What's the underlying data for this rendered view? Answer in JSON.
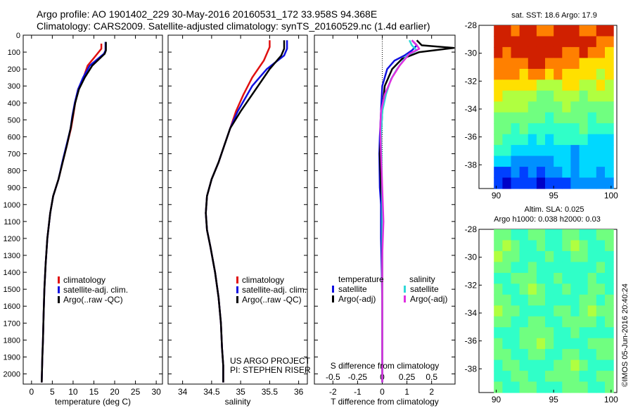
{
  "header": {
    "line1": "Argo profile: AO 1901402_229 30-May-2016 20160531_172 33.958S 94.368E",
    "line2": "Climatology: CARS2009. Satellite-adjusted climatology: synTS_20160529.nc (1.4d earlier)"
  },
  "colors": {
    "climatology": "#e01010",
    "satellite": "#1010e0",
    "argo": "#000000",
    "satellite_s": "#30d8d8",
    "argo_s": "#e030e0"
  },
  "credits": {
    "project": "US ARGO PROJECT",
    "pi": "PI: STEPHEN RISER"
  },
  "watermark": "©IMOS 05-Jun-2016 20:40:24",
  "chart_data": [
    {
      "type": "line",
      "xlabel": "temperature (deg C)",
      "ylabel": "",
      "xlim": [
        -2,
        31.5
      ],
      "ylim": [
        2060,
        0
      ],
      "yinvert": true,
      "xticks": [
        0,
        5,
        10,
        15,
        20,
        25,
        30
      ],
      "yticks": [
        0,
        100,
        200,
        300,
        400,
        500,
        600,
        700,
        800,
        900,
        1000,
        1100,
        1200,
        1300,
        1400,
        1500,
        1600,
        1700,
        1800,
        1900,
        2000
      ],
      "legend": "bottom-right",
      "series": [
        {
          "name": "climatology",
          "color_key": "climatology",
          "x": [
            16.8,
            16.8,
            15.5,
            13.5,
            12.5,
            11.2,
            10.5,
            10.0,
            9.5,
            8.5,
            7.5,
            6.5,
            5.2,
            4.5,
            3.8,
            3.4,
            3.1,
            2.9,
            2.75,
            2.6,
            2.5,
            2.45
          ],
          "y": [
            50,
            80,
            120,
            180,
            250,
            320,
            400,
            480,
            550,
            650,
            750,
            850,
            950,
            1050,
            1200,
            1350,
            1500,
            1650,
            1800,
            1900,
            2000,
            2050
          ]
        },
        {
          "name": "satellite-adj. clim.",
          "color_key": "satellite",
          "x": [
            17.8,
            17.8,
            17.4,
            14.0,
            12.4,
            11.2,
            10.4,
            9.8,
            9.4,
            8.4,
            7.4,
            6.5,
            5.2,
            4.5,
            3.8,
            3.4,
            3.1,
            2.9,
            2.75,
            2.6,
            2.5,
            2.45
          ],
          "y": [
            40,
            90,
            110,
            180,
            250,
            320,
            400,
            480,
            550,
            650,
            750,
            850,
            950,
            1050,
            1200,
            1350,
            1500,
            1650,
            1800,
            1900,
            2000,
            2050
          ]
        },
        {
          "name": "Argo(..raw -QC)",
          "color_key": "argo",
          "x": [
            17.9,
            17.9,
            17.6,
            14.6,
            12.8,
            11.4,
            10.5,
            9.9,
            9.4,
            8.5,
            7.5,
            6.5,
            5.2,
            4.5,
            3.8,
            3.4,
            3.1,
            2.9,
            2.75,
            2.6,
            2.5,
            2.45
          ],
          "y": [
            40,
            90,
            110,
            180,
            250,
            320,
            400,
            480,
            550,
            650,
            750,
            850,
            950,
            1050,
            1200,
            1350,
            1500,
            1650,
            1800,
            1900,
            2000,
            2050
          ]
        }
      ]
    },
    {
      "type": "line",
      "xlabel": "salinity",
      "ylabel": "",
      "xlim": [
        33.75,
        36.15
      ],
      "ylim": [
        2060,
        0
      ],
      "yinvert": true,
      "xticks": [
        34,
        34.5,
        35,
        35.5,
        36
      ],
      "legend": "bottom-right",
      "series": [
        {
          "name": "climatology",
          "color_key": "climatology",
          "x": [
            35.5,
            35.5,
            35.4,
            35.2,
            35.05,
            34.92,
            34.82,
            34.72,
            34.62,
            34.5,
            34.42,
            34.4,
            34.42,
            34.48,
            34.56,
            34.62,
            34.66,
            34.68,
            34.7,
            34.7
          ],
          "y": [
            30,
            70,
            150,
            250,
            350,
            450,
            550,
            650,
            750,
            850,
            950,
            1050,
            1150,
            1250,
            1400,
            1550,
            1700,
            1850,
            1950,
            2050
          ]
        },
        {
          "name": "satellite-adj. clim.",
          "color_key": "satellite",
          "x": [
            35.8,
            35.8,
            35.75,
            35.45,
            35.2,
            34.95,
            34.82,
            34.72,
            34.62,
            34.5,
            34.42,
            34.4,
            34.42,
            34.48,
            34.56,
            34.62,
            34.66,
            34.68,
            34.7,
            34.7
          ],
          "y": [
            30,
            80,
            120,
            200,
            300,
            450,
            550,
            650,
            750,
            850,
            950,
            1050,
            1150,
            1250,
            1400,
            1550,
            1700,
            1850,
            1950,
            2050
          ]
        },
        {
          "name": "Argo(..raw -QC)",
          "color_key": "argo",
          "x": [
            35.75,
            35.75,
            35.7,
            35.5,
            35.3,
            35.0,
            34.82,
            34.72,
            34.62,
            34.5,
            34.42,
            34.4,
            34.42,
            34.48,
            34.56,
            34.62,
            34.66,
            34.68,
            34.7,
            34.7
          ],
          "y": [
            30,
            80,
            120,
            200,
            300,
            450,
            550,
            650,
            750,
            850,
            950,
            1050,
            1150,
            1250,
            1400,
            1550,
            1700,
            1850,
            1950,
            2050
          ]
        }
      ]
    },
    {
      "type": "line",
      "xlabel": "T difference from climatology",
      "xlabel_top": "S difference from climatology",
      "xlim": [
        -2.75,
        2.95
      ],
      "ylim": [
        2060,
        0
      ],
      "yinvert": true,
      "xticks": [
        -2,
        -1,
        0,
        1,
        2
      ],
      "xticks_s": [
        -0.5,
        -0.25,
        0,
        0.25,
        0.5
      ],
      "legend_groups": [
        "temperature",
        "salinity"
      ],
      "series": [
        {
          "name": "satellite",
          "group": "temperature",
          "color_key": "satellite",
          "x": [
            1.2,
            1.4,
            1.2,
            0.9,
            0.5,
            0.2,
            0.0,
            -0.05,
            -0.1,
            -0.12,
            -0.1,
            -0.05,
            -0.05,
            -0.02,
            0.0,
            0.0,
            0.0,
            0.0
          ],
          "y": [
            30,
            60,
            90,
            120,
            150,
            200,
            300,
            450,
            600,
            700,
            900,
            1000,
            1200,
            1400,
            1600,
            1800,
            1950,
            2050
          ]
        },
        {
          "name": "Argo(-adj)",
          "group": "temperature",
          "color_key": "argo",
          "x": [
            1.4,
            1.6,
            2.9,
            1.5,
            0.8,
            0.4,
            0.1,
            0.0,
            -0.05,
            -0.1,
            -0.05,
            0.0,
            0.0,
            0.0,
            0.0,
            0.0,
            0.0
          ],
          "y": [
            30,
            60,
            75,
            100,
            140,
            200,
            300,
            450,
            600,
            700,
            900,
            1000,
            1200,
            1400,
            1600,
            1800,
            2050
          ]
        },
        {
          "name": "satellite",
          "group": "salinity",
          "color_key": "satellite_s",
          "x": [
            1.1,
            1.2,
            1.4,
            1.0,
            0.6,
            0.35,
            0.15,
            0.0,
            -0.05,
            -0.02,
            0.0,
            0.0,
            0.0,
            0.0,
            0.0,
            0.0
          ],
          "y": [
            30,
            60,
            90,
            120,
            200,
            260,
            350,
            450,
            600,
            800,
            1000,
            1200,
            1400,
            1600,
            1800,
            2050
          ]
        },
        {
          "name": "Argo(-adj)",
          "group": "salinity",
          "color_key": "argo_s",
          "x": [
            1.2,
            1.4,
            1.5,
            1.1,
            0.7,
            0.4,
            0.1,
            -0.05,
            -0.08,
            -0.05,
            0.0,
            0.05,
            0.0,
            0.0,
            0.0,
            0.0
          ],
          "y": [
            30,
            60,
            80,
            110,
            180,
            250,
            350,
            450,
            550,
            700,
            900,
            1100,
            1300,
            1500,
            1800,
            2050
          ]
        }
      ]
    },
    {
      "type": "heatmap",
      "title": "sat. SST: 18.6 Argo: 17.9",
      "xlim": [
        88.5,
        100.5
      ],
      "ylim": [
        -39.7,
        -28
      ],
      "xticks": [
        90,
        95,
        100
      ],
      "yticks": [
        -28,
        -30,
        -32,
        -34,
        -36,
        -38
      ],
      "colormap": "jet",
      "grid_rows": [
        [
          10,
          10,
          9,
          10,
          10,
          9,
          9,
          10,
          10,
          10,
          9,
          9,
          10,
          10
        ],
        [
          10,
          10,
          10,
          10,
          10,
          10,
          10,
          10,
          10,
          10,
          10,
          10,
          9,
          9
        ],
        [
          10,
          9,
          10,
          10,
          10,
          10,
          10,
          10,
          9,
          9,
          10,
          9,
          9,
          8
        ],
        [
          9,
          9,
          9,
          9,
          10,
          10,
          9,
          9,
          9,
          9,
          8,
          8,
          8,
          8
        ],
        [
          9,
          9,
          9,
          8,
          9,
          9,
          8,
          9,
          8,
          8,
          8,
          8,
          7,
          8
        ],
        [
          8,
          8,
          8,
          8,
          8,
          7,
          7,
          7,
          8,
          8,
          7,
          7,
          8,
          7
        ],
        [
          8,
          7,
          7,
          7,
          7,
          6,
          6,
          7,
          7,
          7,
          6,
          7,
          7,
          7
        ],
        [
          7,
          7,
          7,
          7,
          6,
          6,
          6,
          6,
          7,
          6,
          6,
          6,
          6,
          6
        ],
        [
          6,
          6,
          6,
          6,
          6,
          6,
          5,
          6,
          6,
          6,
          6,
          5,
          6,
          6
        ],
        [
          6,
          6,
          5,
          6,
          5,
          5,
          5,
          5,
          5,
          5,
          6,
          5,
          5,
          5
        ],
        [
          6,
          5,
          5,
          5,
          4,
          5,
          4,
          5,
          5,
          5,
          5,
          4,
          4,
          4
        ],
        [
          5,
          5,
          4,
          4,
          4,
          4,
          4,
          4,
          4,
          3,
          4,
          4,
          4,
          4
        ],
        [
          4,
          4,
          3,
          3,
          3,
          3,
          3,
          4,
          4,
          3,
          4,
          4,
          4,
          4
        ],
        [
          2,
          2,
          3,
          2,
          3,
          2,
          3,
          3,
          4,
          3,
          4,
          4,
          3,
          4
        ],
        [
          2,
          1,
          2,
          2,
          2,
          1,
          2,
          2,
          2,
          3,
          3,
          3,
          3,
          3
        ]
      ]
    },
    {
      "type": "heatmap",
      "title": "Altim. SLA: 0.025",
      "subtitle": "Argo h1000: 0.038 h2000: 0.03",
      "xlim": [
        88.5,
        100.5
      ],
      "ylim": [
        -39.7,
        -28
      ],
      "xticks": [
        90,
        95,
        100
      ],
      "yticks": [
        -28,
        -30,
        -32,
        -34,
        -36,
        -38
      ],
      "colormap": "jet",
      "grid_rows": [
        [
          6,
          6,
          5,
          5,
          6,
          6,
          5,
          5,
          6,
          6,
          5,
          5,
          6,
          6
        ],
        [
          6,
          7,
          6,
          5,
          5,
          6,
          5,
          5,
          6,
          7,
          6,
          5,
          5,
          6
        ],
        [
          7,
          6,
          6,
          5,
          5,
          5,
          6,
          5,
          5,
          6,
          6,
          5,
          5,
          5
        ],
        [
          6,
          6,
          5,
          5,
          6,
          5,
          5,
          5,
          5,
          5,
          5,
          5,
          6,
          5
        ],
        [
          5,
          5,
          6,
          6,
          6,
          5,
          5,
          6,
          5,
          5,
          5,
          6,
          5,
          5
        ],
        [
          6,
          5,
          5,
          6,
          7,
          6,
          5,
          5,
          6,
          5,
          5,
          6,
          6,
          5
        ],
        [
          6,
          6,
          5,
          5,
          6,
          6,
          5,
          5,
          5,
          5,
          6,
          6,
          5,
          6
        ],
        [
          7,
          6,
          6,
          5,
          5,
          5,
          5,
          6,
          6,
          5,
          6,
          7,
          6,
          6
        ],
        [
          6,
          6,
          5,
          5,
          6,
          6,
          5,
          5,
          6,
          6,
          6,
          6,
          5,
          6
        ],
        [
          5,
          5,
          5,
          6,
          6,
          6,
          6,
          5,
          5,
          6,
          5,
          5,
          5,
          5
        ],
        [
          6,
          5,
          5,
          6,
          6,
          7,
          6,
          5,
          5,
          5,
          5,
          6,
          6,
          6
        ],
        [
          6,
          6,
          5,
          5,
          6,
          6,
          5,
          5,
          6,
          6,
          5,
          5,
          6,
          6
        ],
        [
          5,
          6,
          6,
          5,
          5,
          5,
          5,
          6,
          6,
          7,
          6,
          5,
          5,
          5
        ],
        [
          5,
          5,
          6,
          6,
          5,
          5,
          6,
          6,
          6,
          6,
          5,
          5,
          6,
          6
        ],
        [
          6,
          5,
          5,
          6,
          6,
          5,
          5,
          5,
          6,
          6,
          6,
          5,
          5,
          6
        ]
      ]
    }
  ]
}
